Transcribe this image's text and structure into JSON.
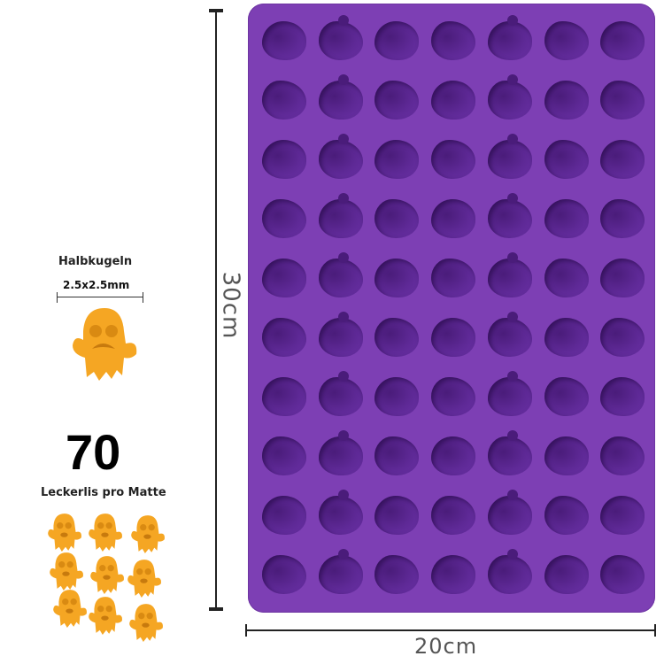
{
  "product": {
    "mat_color": "#7d3fb4",
    "cavity_color": "#5e2996",
    "treat_color": "#f5a623",
    "grid": {
      "columns": 7,
      "rows": 10
    }
  },
  "dimensions": {
    "height_label": "30cm",
    "width_label": "20cm"
  },
  "info": {
    "shape_label": "Halbkugeln",
    "size_label": "2.5x2.5mm",
    "count": "70",
    "count_caption": "Leckerlis pro Matte"
  }
}
